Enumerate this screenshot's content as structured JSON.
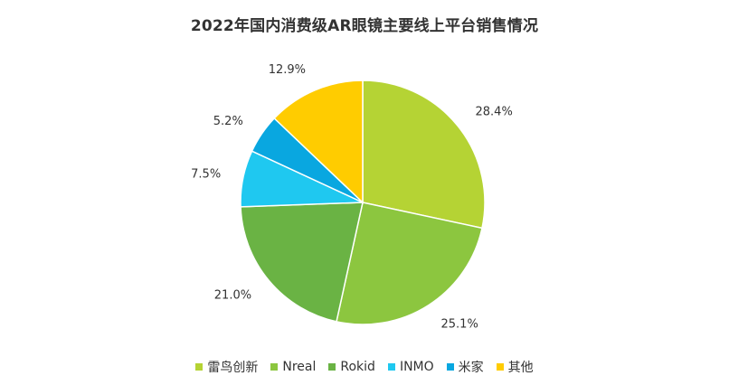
{
  "title": "2022年国内消费级AR眼镜主要线上平台销售情况",
  "chart_data": {
    "type": "pie",
    "title": "2022年国内消费级AR眼镜主要线上平台销售情况",
    "start_angle_deg": 0,
    "direction": "clockwise",
    "legend_position": "bottom",
    "slices": [
      {
        "name": "雷鸟创新",
        "value": 28.4,
        "label": "28.4%",
        "color": "#b5d334"
      },
      {
        "name": "Nreal",
        "value": 25.1,
        "label": "25.1%",
        "color": "#8cc63f"
      },
      {
        "name": "Rokid",
        "value": 21.0,
        "label": "21.0%",
        "color": "#6ab344"
      },
      {
        "name": "INMO",
        "value": 7.5,
        "label": "7.5%",
        "color": "#1fc8f0"
      },
      {
        "name": "米家",
        "value": 5.2,
        "label": "5.2%",
        "color": "#09a7e0"
      },
      {
        "name": "其他",
        "value": 12.9,
        "label": "12.9%",
        "color": "#ffcc00"
      }
    ]
  }
}
